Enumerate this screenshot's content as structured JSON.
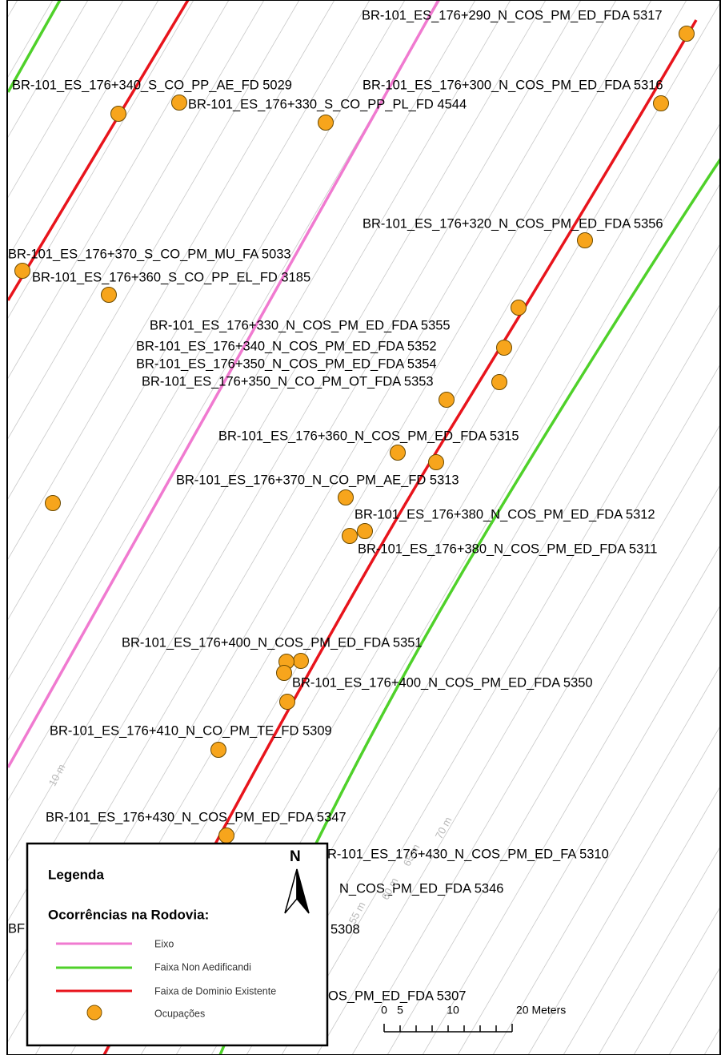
{
  "map_labels": [
    "BR-101_ES_176+290_N_COS_PM_ED_FDA 5317",
    "BR-101_ES_176+340_S_CO_PP_AE_FD 5029",
    "BR-101_ES_176+300_N_COS_PM_ED_FDA 5316",
    "BR-101_ES_176+330_S_CO_PP_PL_FD 4544",
    "BR-101_ES_176+320_N_COS_PM_ED_FDA 5356",
    "BR-101_ES_176+370_S_CO_PM_MU_FA 5033",
    "BR-101_ES_176+360_S_CO_PP_EL_FD 3185",
    "BR-101_ES_176+330_N_COS_PM_ED_FDA 5355",
    "BR-101_ES_176+340_N_COS_PM_ED_FDA 5352",
    "BR-101_ES_176+350_N_COS_PM_ED_FDA 5354",
    "BR-101_ES_176+350_N_CO_PM_OT_FDA 5353",
    "BR-101_ES_176+360_N_COS_PM_ED_FDA 5315",
    "BR-101_ES_176+370_N_CO_PM_AE_FD 5313",
    "BR-101_ES_176+380_N_COS_PM_ED_FDA 5312",
    "BR-101_ES_176+380_N_COS_PM_ED_FDA 5311",
    "BR-101_ES_176+400_N_COS_PM_ED_FDA 5351",
    "BR-101_ES_176+400_N_COS_PM_ED_FDA 5350",
    "BR-101_ES_176+410_N_CO_PM_TE_FD 5309",
    "BR-101_ES_176+430_N_COS_PM_ED_FDA 5347",
    "BR-101_ES_176+430_N_COS_PM_ED_FA 5310",
    "N_COS_PM_ED_FDA 5346",
    "5308",
    "BF",
    "OS_PM_ED_FDA 5307"
  ],
  "distance_labels": [
    "10 m",
    "55 m",
    "60 m",
    "65 m",
    "70 m"
  ],
  "legend": {
    "title": "Legenda",
    "subtitle": "Ocorrências na Rodovia:",
    "items": [
      "Eixo",
      "Faixa Non Aedificandi",
      "Faixa de Dominio Existente",
      "Ocupações"
    ]
  },
  "north": "N",
  "scale_bar": {
    "labels": [
      0,
      5,
      10,
      "20 Meters"
    ]
  }
}
